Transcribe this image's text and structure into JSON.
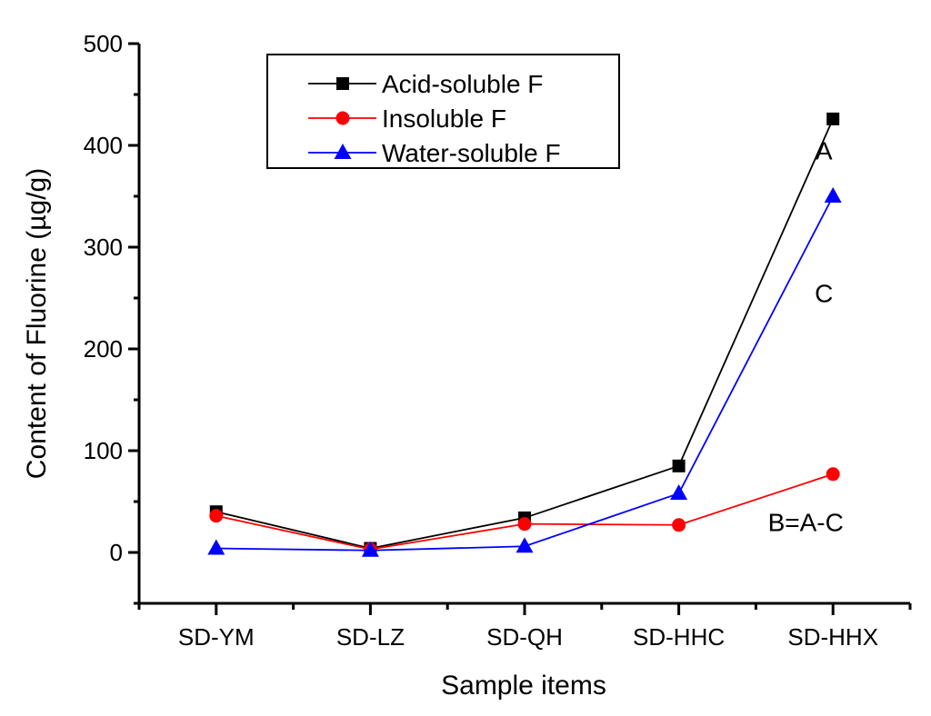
{
  "chart_data": {
    "type": "line",
    "title": "",
    "xlabel": "Sample items",
    "ylabel": "Content of Fluorine (µg/g)",
    "categories": [
      "SD-YM",
      "SD-LZ",
      "SD-QH",
      "SD-HHC",
      "SD-HHX"
    ],
    "ylim": [
      -50,
      500
    ],
    "yticks": [
      0,
      100,
      200,
      300,
      400,
      500
    ],
    "yticks_labels": [
      "0",
      "100",
      "200",
      "300",
      "400",
      "500"
    ],
    "grid": false,
    "legend_position": "top-left",
    "series": [
      {
        "name": "Acid-soluble F",
        "color": "#000000",
        "marker": "square",
        "values": [
          40,
          4,
          34,
          85,
          426
        ]
      },
      {
        "name": "Insoluble F",
        "color": "#ff0000",
        "marker": "circle",
        "values": [
          36,
          3,
          28,
          27,
          77
        ]
      },
      {
        "name": "Water-soluble F",
        "color": "#0000ff",
        "marker": "triangle",
        "values": [
          4,
          2,
          6,
          58,
          350
        ]
      }
    ],
    "annotations": [
      {
        "text": "A",
        "category": "SD-HHX",
        "value": 395
      },
      {
        "text": "C",
        "category": "SD-HHX",
        "value": 255
      },
      {
        "text": "B=A-C",
        "category": "SD-HHX",
        "value": 30
      }
    ]
  }
}
